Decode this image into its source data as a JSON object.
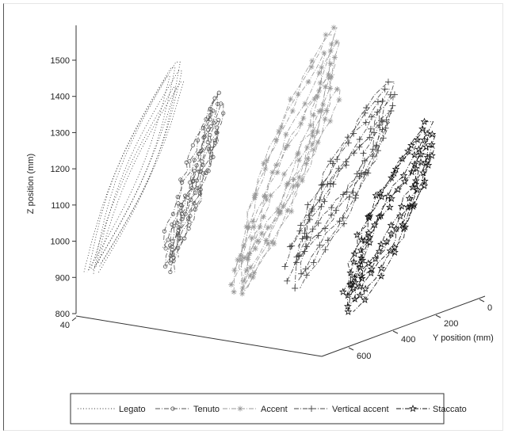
{
  "chart_data": {
    "type": "line3d",
    "title": "",
    "zlabel": "Z position (mm)",
    "ylabel": "Y position (mm)",
    "xlabel": "",
    "z_ticks": [
      800,
      900,
      1000,
      1100,
      1200,
      1300,
      1400,
      1500
    ],
    "y_ticks": [
      0,
      200,
      400,
      600
    ],
    "x_ticks": [
      40
    ],
    "z_tick_labels": [
      "800",
      "900",
      "1000",
      "1100",
      "1200",
      "1300",
      "1400",
      "1500"
    ],
    "y_tick_labels": [
      "0",
      "200",
      "400",
      "600"
    ],
    "x_tick_labels": [
      "40"
    ],
    "zlim": [
      800,
      1600
    ],
    "ylim": [
      0,
      700
    ],
    "grid": false,
    "legend_position": "bottom",
    "series": [
      {
        "name": "Legato",
        "marker": "none",
        "dash": "dotted",
        "color": "#333333",
        "loops": [
          {
            "y": 640,
            "z_bottom": 910,
            "z_top": 1495
          },
          {
            "y": 630,
            "z_bottom": 920,
            "z_top": 1480
          },
          {
            "y": 645,
            "z_bottom": 930,
            "z_top": 1470
          },
          {
            "y": 620,
            "z_bottom": 915,
            "z_top": 1455
          },
          {
            "y": 650,
            "z_bottom": 940,
            "z_top": 1440
          },
          {
            "y": 635,
            "z_bottom": 925,
            "z_top": 1425
          }
        ]
      },
      {
        "name": "Tenuto",
        "marker": "circle",
        "dash": "dashdot",
        "color": "#555555",
        "loops": [
          {
            "y": 520,
            "z_bottom": 915,
            "z_top": 1410
          },
          {
            "y": 510,
            "z_bottom": 930,
            "z_top": 1395
          },
          {
            "y": 530,
            "z_bottom": 955,
            "z_top": 1380
          },
          {
            "y": 505,
            "z_bottom": 980,
            "z_top": 1360
          },
          {
            "y": 525,
            "z_bottom": 1000,
            "z_top": 1335
          },
          {
            "y": 515,
            "z_bottom": 940,
            "z_top": 1300
          }
        ]
      },
      {
        "name": "Accent",
        "marker": "asterisk",
        "dash": "dashdot",
        "color": "#999999",
        "loops": [
          {
            "y": 400,
            "z_bottom": 855,
            "z_top": 1590
          },
          {
            "y": 390,
            "z_bottom": 860,
            "z_top": 1570
          },
          {
            "y": 410,
            "z_bottom": 870,
            "z_top": 1550
          },
          {
            "y": 385,
            "z_bottom": 880,
            "z_top": 1520
          },
          {
            "y": 405,
            "z_bottom": 890,
            "z_top": 1490
          },
          {
            "y": 395,
            "z_bottom": 920,
            "z_top": 1460
          },
          {
            "y": 415,
            "z_bottom": 950,
            "z_top": 1420
          }
        ]
      },
      {
        "name": "Vertical accent",
        "marker": "plus",
        "dash": "dashdot",
        "color": "#444444",
        "loops": [
          {
            "y": 290,
            "z_bottom": 870,
            "z_top": 1440
          },
          {
            "y": 280,
            "z_bottom": 890,
            "z_top": 1420
          },
          {
            "y": 300,
            "z_bottom": 910,
            "z_top": 1405
          },
          {
            "y": 275,
            "z_bottom": 930,
            "z_top": 1385
          },
          {
            "y": 295,
            "z_bottom": 960,
            "z_top": 1360
          },
          {
            "y": 285,
            "z_bottom": 985,
            "z_top": 1330
          }
        ]
      },
      {
        "name": "Staccato",
        "marker": "star",
        "dash": "dashdot",
        "color": "#111111",
        "loops": [
          {
            "y": 120,
            "z_bottom": 805,
            "z_top": 1330
          },
          {
            "y": 110,
            "z_bottom": 820,
            "z_top": 1310
          },
          {
            "y": 130,
            "z_bottom": 840,
            "z_top": 1295
          },
          {
            "y": 105,
            "z_bottom": 860,
            "z_top": 1280
          },
          {
            "y": 125,
            "z_bottom": 880,
            "z_top": 1260
          },
          {
            "y": 115,
            "z_bottom": 850,
            "z_top": 1240
          }
        ]
      }
    ]
  }
}
